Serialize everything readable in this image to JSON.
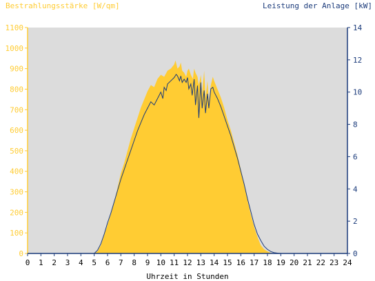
{
  "chart_data": {
    "type": "area",
    "title": "",
    "ylabel_left": "Bestrahlungsstärke [W/qm]",
    "ylabel_right": "Leistung der Anlage [kW]",
    "xlabel": "Uhrzeit in Stunden",
    "x_ticks": [
      "0",
      "1",
      "2",
      "3",
      "4",
      "5",
      "6",
      "7",
      "8",
      "9",
      "10",
      "11",
      "12",
      "13",
      "14",
      "15",
      "16",
      "17",
      "18",
      "19",
      "20",
      "21",
      "22",
      "23",
      "24"
    ],
    "y_left_ticks": [
      "0",
      "100",
      "200",
      "300",
      "400",
      "500",
      "600",
      "700",
      "800",
      "900",
      "1000",
      "1100"
    ],
    "y_right_ticks": [
      "0",
      "2",
      "4",
      "6",
      "8",
      "10",
      "12",
      "14"
    ],
    "xlim": [
      0,
      24
    ],
    "ylim_left": [
      0,
      1100
    ],
    "ylim_right": [
      0,
      14
    ],
    "grid": false,
    "colors": {
      "background_plot": "#dcdcdc",
      "irradiance_fill": "#ffcc33",
      "power_line": "#1a3a7a",
      "left_axis_text": "#ffcc33",
      "right_axis_text": "#1a3a7a",
      "axis_line_left": "#ffcc33",
      "axis_line_right": "#1a3a7a",
      "x_axis_text": "#000000"
    },
    "series": [
      {
        "name": "Bestrahlungsstärke",
        "axis": "left",
        "x": [
          5.0,
          5.25,
          5.5,
          5.75,
          6.0,
          6.25,
          6.5,
          6.75,
          7.0,
          7.25,
          7.5,
          7.75,
          8.0,
          8.25,
          8.5,
          8.75,
          9.0,
          9.25,
          9.5,
          9.75,
          10.0,
          10.25,
          10.5,
          10.75,
          11.0,
          11.1,
          11.25,
          11.4,
          11.5,
          11.6,
          11.75,
          11.9,
          12.0,
          12.1,
          12.25,
          12.4,
          12.5,
          12.6,
          12.75,
          12.85,
          13.0,
          13.1,
          13.25,
          13.35,
          13.5,
          13.6,
          13.75,
          13.9,
          14.0,
          14.25,
          14.5,
          14.75,
          15.0,
          15.25,
          15.5,
          15.75,
          16.0,
          16.25,
          16.5,
          16.75,
          17.0,
          17.25,
          17.5,
          17.75,
          18.0,
          18.25,
          18.5,
          18.75,
          19.0,
          19.25,
          19.5,
          19.75,
          20.0,
          20.25
        ],
        "values": [
          0,
          10,
          40,
          90,
          140,
          190,
          250,
          320,
          390,
          440,
          500,
          560,
          610,
          660,
          710,
          750,
          790,
          820,
          810,
          850,
          870,
          860,
          890,
          900,
          920,
          940,
          900,
          910,
          930,
          890,
          880,
          860,
          890,
          900,
          870,
          850,
          900,
          880,
          860,
          820,
          870,
          780,
          890,
          760,
          840,
          740,
          820,
          860,
          840,
          800,
          760,
          710,
          650,
          600,
          540,
          480,
          410,
          340,
          260,
          190,
          130,
          80,
          40,
          20,
          10,
          3,
          0,
          0,
          0,
          0,
          0,
          0,
          0,
          0
        ]
      },
      {
        "name": "Leistung der Anlage",
        "axis": "right",
        "x": [
          5.0,
          5.25,
          5.5,
          5.75,
          6.0,
          6.25,
          6.5,
          6.75,
          7.0,
          7.25,
          7.5,
          7.75,
          8.0,
          8.25,
          8.5,
          8.75,
          9.0,
          9.25,
          9.5,
          9.75,
          10.0,
          10.15,
          10.25,
          10.4,
          10.5,
          10.75,
          11.0,
          11.15,
          11.25,
          11.4,
          11.5,
          11.6,
          11.75,
          11.9,
          12.0,
          12.1,
          12.25,
          12.35,
          12.5,
          12.6,
          12.75,
          12.85,
          13.0,
          13.1,
          13.25,
          13.35,
          13.5,
          13.6,
          13.75,
          13.9,
          14.0,
          14.25,
          14.5,
          14.75,
          15.0,
          15.25,
          15.5,
          15.75,
          16.0,
          16.25,
          16.5,
          16.75,
          17.0,
          17.25,
          17.5,
          17.75,
          18.0,
          18.25,
          18.5,
          18.75,
          19.0,
          19.25,
          19.5,
          19.75,
          20.0
        ],
        "values": [
          0,
          0.2,
          0.6,
          1.2,
          1.9,
          2.5,
          3.2,
          3.9,
          4.6,
          5.2,
          5.8,
          6.4,
          7.0,
          7.6,
          8.1,
          8.6,
          9.0,
          9.4,
          9.2,
          9.6,
          10.0,
          9.6,
          10.3,
          10.1,
          10.5,
          10.7,
          10.9,
          11.1,
          11.0,
          10.7,
          11.0,
          10.6,
          10.8,
          10.6,
          10.9,
          10.2,
          10.5,
          9.8,
          10.8,
          9.2,
          10.4,
          8.4,
          10.6,
          9.0,
          10.1,
          8.7,
          9.9,
          9.0,
          10.2,
          10.3,
          10.0,
          9.6,
          9.1,
          8.5,
          7.9,
          7.3,
          6.6,
          5.9,
          5.1,
          4.3,
          3.4,
          2.6,
          1.8,
          1.2,
          0.8,
          0.45,
          0.25,
          0.12,
          0.05,
          0.02,
          0,
          0,
          0,
          0,
          0
        ]
      }
    ]
  }
}
